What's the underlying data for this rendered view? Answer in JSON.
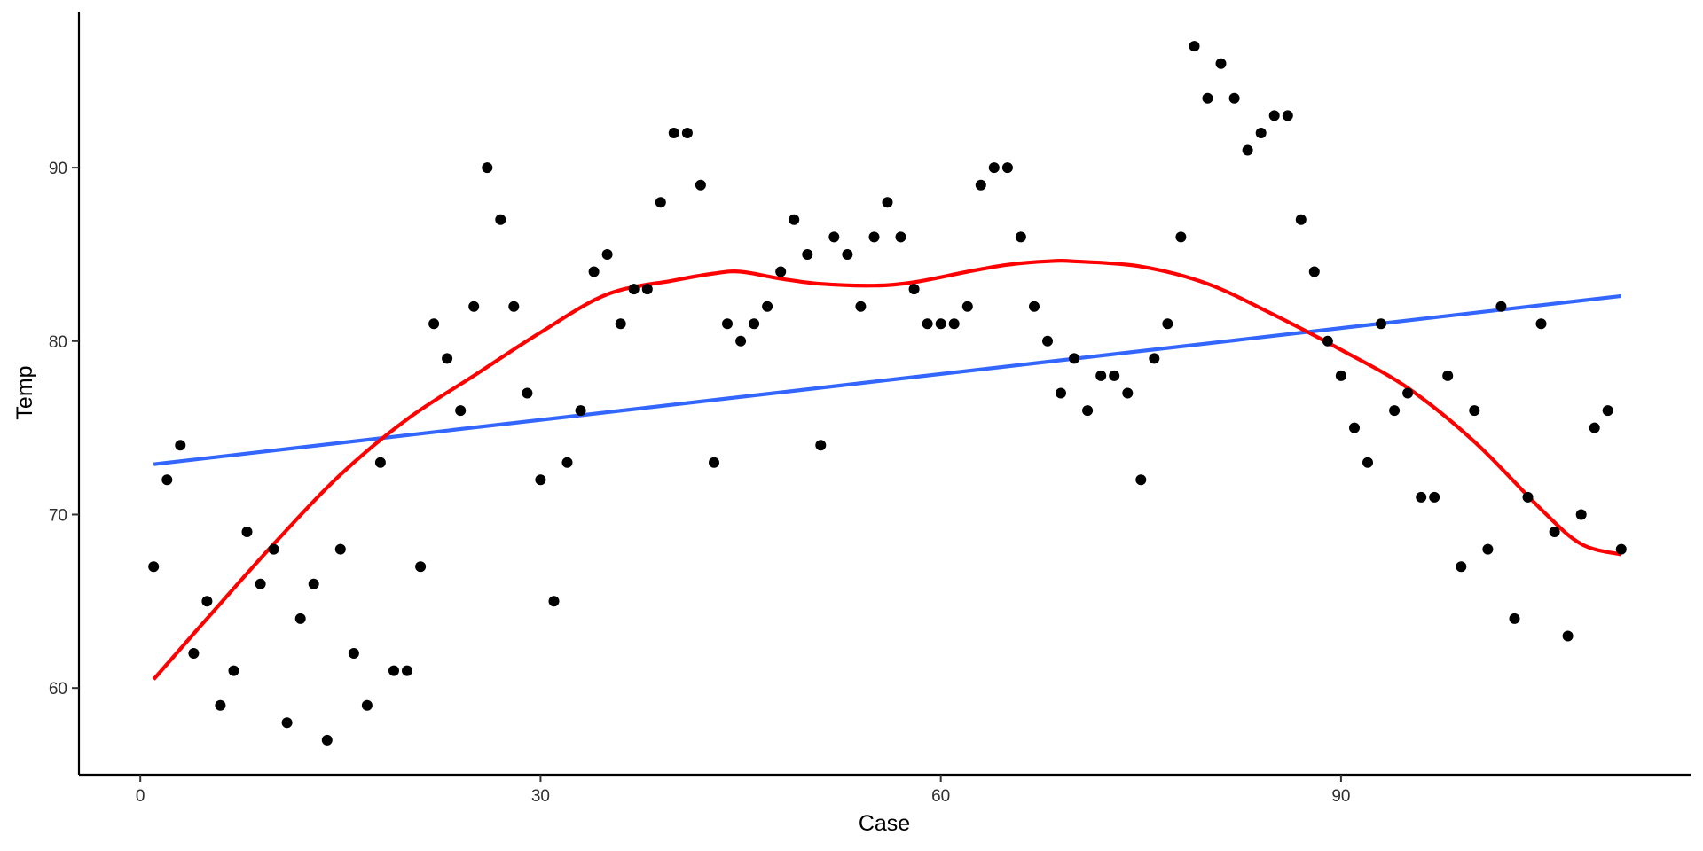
{
  "chart_data": {
    "type": "scatter",
    "title": "",
    "xlabel": "Case",
    "ylabel": "Temp",
    "xlim": [
      -4.6,
      116.2
    ],
    "ylim": [
      55,
      99
    ],
    "x_ticks": [
      0,
      30,
      60,
      90
    ],
    "y_ticks": [
      60,
      70,
      80,
      90
    ],
    "grid": false,
    "legend": "none",
    "colors": {
      "points": "#000000",
      "linear_fit": "#3366FF",
      "smooth_fit": "#FF0000",
      "axis": "#000000"
    },
    "points": {
      "x": [
        1,
        2,
        3,
        4,
        5,
        6,
        7,
        8,
        9,
        10,
        11,
        12,
        13,
        14,
        15,
        16,
        17,
        18,
        19,
        20,
        21,
        22,
        23,
        24,
        25,
        26,
        27,
        28,
        29,
        30,
        31,
        32,
        33,
        34,
        35,
        36,
        37,
        38,
        39,
        40,
        41,
        42,
        43,
        44,
        45,
        46,
        47,
        48,
        49,
        50,
        51,
        52,
        53,
        54,
        55,
        56,
        57,
        58,
        59,
        60,
        61,
        62,
        63,
        64,
        65,
        66,
        67,
        68,
        69,
        70,
        71,
        72,
        73,
        74,
        75,
        76,
        77,
        78,
        79,
        80,
        81,
        82,
        83,
        84,
        85,
        86,
        87,
        88,
        89,
        90,
        91,
        92,
        93,
        94,
        95,
        96,
        97,
        98,
        99,
        100,
        101,
        102,
        103,
        104,
        105,
        106,
        107,
        108,
        109,
        110,
        111
      ],
      "y": [
        67,
        72,
        74,
        62,
        65,
        59,
        61,
        69,
        66,
        68,
        58,
        64,
        66,
        57,
        68,
        62,
        59,
        73,
        61,
        61,
        67,
        81,
        79,
        76,
        82,
        90,
        87,
        82,
        77,
        72,
        65,
        73,
        76,
        84,
        85,
        81,
        83,
        83,
        88,
        92,
        92,
        89,
        73,
        81,
        80,
        81,
        82,
        84,
        87,
        85,
        74,
        86,
        85,
        82,
        86,
        88,
        86,
        83,
        81,
        81,
        81,
        82,
        89,
        90,
        90,
        86,
        82,
        80,
        77,
        79,
        76,
        78,
        78,
        77,
        72,
        79,
        81,
        86,
        97,
        94,
        96,
        94,
        91,
        92,
        93,
        93,
        87,
        84,
        80,
        78,
        75,
        73,
        81,
        76,
        77,
        71,
        71,
        78,
        67,
        76,
        68,
        82,
        64,
        71,
        81,
        69,
        63,
        70,
        75,
        76,
        68
      ]
    },
    "series": [
      {
        "type": "line",
        "x": [
          1,
          111
        ],
        "values": [
          72.9,
          82.6
        ]
      },
      {
        "type": "line",
        "x": [
          1,
          5,
          10,
          15,
          20,
          25,
          30,
          35,
          40,
          43,
          45,
          48,
          51,
          55,
          58,
          62,
          65,
          68,
          70,
          75,
          80,
          85,
          90,
          95,
          100,
          105,
          108,
          111
        ],
        "values": [
          60.5,
          64.0,
          68.3,
          72.3,
          75.5,
          78.0,
          80.5,
          82.7,
          83.5,
          83.9,
          84.0,
          83.6,
          83.3,
          83.2,
          83.4,
          84.0,
          84.4,
          84.6,
          84.6,
          84.3,
          83.3,
          81.5,
          79.5,
          77.3,
          74.2,
          70.3,
          68.3,
          67.7
        ]
      }
    ]
  }
}
